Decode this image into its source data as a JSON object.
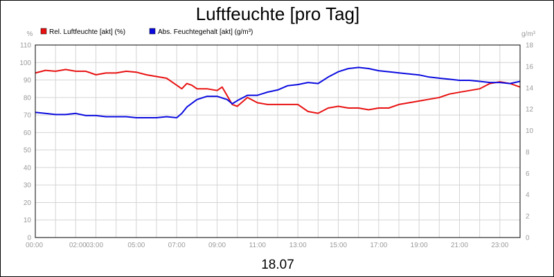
{
  "chart_data": {
    "type": "line",
    "title": "Luftfeuchte [pro Tag]",
    "xlabel": "18.07",
    "x_unit": "hours",
    "xlim": [
      0,
      24
    ],
    "x_ticks": [
      0,
      2,
      3,
      5,
      7,
      9,
      11,
      13,
      15,
      17,
      19,
      21,
      23
    ],
    "x_tick_labels": [
      "00:00",
      "02:00",
      "03:00",
      "05:00",
      "07:00",
      "09:00",
      "11:00",
      "13:00",
      "15:00",
      "17:00",
      "19:00",
      "21:00",
      "23:00"
    ],
    "grid": true,
    "legend_position": "top-left",
    "y_left": {
      "unit_label": "%",
      "ylim": [
        0,
        110
      ],
      "ticks": [
        0,
        10,
        20,
        30,
        40,
        50,
        60,
        70,
        80,
        90,
        100,
        110
      ]
    },
    "y_right": {
      "unit_label": "g/m³",
      "ylim": [
        0,
        18
      ],
      "ticks": [
        0,
        2,
        4,
        6,
        8,
        10,
        12,
        14,
        16,
        18
      ]
    },
    "series": [
      {
        "name": "Rel. Luftfeuchte [akt] (%)",
        "color": "#e81010",
        "axis": "left",
        "x": [
          0,
          0.5,
          1,
          1.5,
          2,
          2.5,
          3,
          3.5,
          4,
          4.5,
          5,
          5.5,
          6,
          6.5,
          7,
          7.25,
          7.5,
          7.75,
          8,
          8.5,
          9,
          9.25,
          9.5,
          9.75,
          10,
          10.5,
          11,
          11.5,
          12,
          12.5,
          13,
          13.5,
          14,
          14.5,
          15,
          15.5,
          16,
          16.5,
          17,
          17.5,
          18,
          18.5,
          19,
          19.5,
          20,
          20.5,
          21,
          21.5,
          22,
          22.5,
          23,
          23.5,
          24
        ],
        "values": [
          94,
          95.5,
          95,
          96,
          95,
          95,
          93,
          94,
          94,
          95,
          94.5,
          93,
          92,
          91,
          87,
          85,
          88,
          87,
          85,
          85,
          84,
          86,
          81,
          76,
          75,
          80,
          77,
          76,
          76,
          76,
          76,
          72,
          71,
          74,
          75,
          74,
          74,
          73,
          74,
          74,
          76,
          77,
          78,
          79,
          80,
          82,
          83,
          84,
          85,
          88,
          89,
          88,
          86
        ]
      },
      {
        "name": "Abs. Feuchtegehalt [akt] (g/m³)",
        "color": "#0a0ae0",
        "axis": "right",
        "x": [
          0,
          0.5,
          1,
          1.5,
          2,
          2.5,
          3,
          3.5,
          4,
          4.5,
          5,
          5.5,
          6,
          6.5,
          7,
          7.25,
          7.5,
          8,
          8.5,
          9,
          9.5,
          9.75,
          10,
          10.5,
          11,
          11.5,
          12,
          12.5,
          13,
          13.5,
          14,
          14.5,
          15,
          15.5,
          16,
          16.5,
          17,
          17.5,
          18,
          18.5,
          19,
          19.5,
          20,
          20.5,
          21,
          21.5,
          22,
          22.5,
          23,
          23.5,
          24
        ],
        "values": [
          11.7,
          11.6,
          11.5,
          11.5,
          11.6,
          11.4,
          11.4,
          11.3,
          11.3,
          11.3,
          11.2,
          11.2,
          11.2,
          11.3,
          11.2,
          11.6,
          12.2,
          12.9,
          13.2,
          13.2,
          12.9,
          12.5,
          12.8,
          13.3,
          13.3,
          13.6,
          13.8,
          14.2,
          14.3,
          14.5,
          14.4,
          15.0,
          15.5,
          15.8,
          15.9,
          15.8,
          15.6,
          15.5,
          15.4,
          15.3,
          15.2,
          15.0,
          14.9,
          14.8,
          14.7,
          14.7,
          14.6,
          14.5,
          14.5,
          14.4,
          14.6
        ]
      }
    ]
  }
}
